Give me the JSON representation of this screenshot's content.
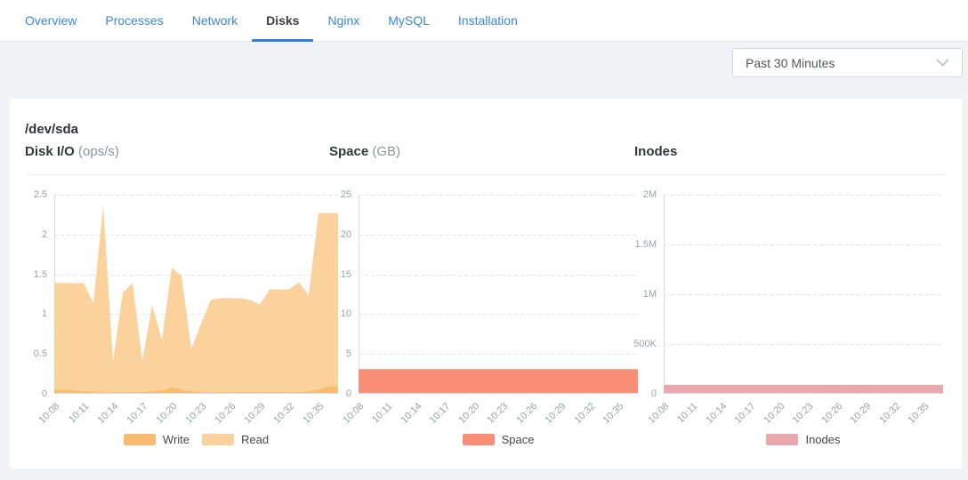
{
  "tabs": {
    "items": [
      {
        "id": "overview",
        "label": "Overview",
        "active": false
      },
      {
        "id": "processes",
        "label": "Processes",
        "active": false
      },
      {
        "id": "network",
        "label": "Network",
        "active": false
      },
      {
        "id": "disks",
        "label": "Disks",
        "active": true
      },
      {
        "id": "nginx",
        "label": "Nginx",
        "active": false
      },
      {
        "id": "mysql",
        "label": "MySQL",
        "active": false
      },
      {
        "id": "installation",
        "label": "Installation",
        "active": false
      }
    ]
  },
  "toolbar": {
    "time_range": "Past 30 Minutes",
    "chevron_icon": "chevron-down"
  },
  "panel": {
    "device": "/dev/sda"
  },
  "colors": {
    "tab_blue": "#3b87d6",
    "active_tab_underline": "#2e7fe1",
    "write_series": "#F9BC6F",
    "read_series": "#FBD29C",
    "space_series": "#FA8E76",
    "inodes_series": "#E8A8AE"
  },
  "chart_data": [
    {
      "id": "disk-io",
      "type": "area",
      "title": "Disk I/O",
      "unit": "(ops/s)",
      "x_tick_labels": [
        "10:08",
        "10:11",
        "10:14",
        "10:17",
        "10:20",
        "10:23",
        "10:26",
        "10:29",
        "10:32",
        "10:35"
      ],
      "points_per_tick": 3,
      "y_ticks": [
        {
          "v": 0,
          "label": "0"
        },
        {
          "v": 0.5,
          "label": "0.5"
        },
        {
          "v": 1,
          "label": "1"
        },
        {
          "v": 1.5,
          "label": "1.5"
        },
        {
          "v": 2,
          "label": "2"
        },
        {
          "v": 2.5,
          "label": "2.5"
        }
      ],
      "y_max": 2.5,
      "grid": "dashed",
      "legend_position": "bottom",
      "series": [
        {
          "name": "Write",
          "color": "#F9BC6F",
          "values": [
            0.05,
            0.05,
            0.04,
            0.03,
            0.03,
            0.02,
            0.02,
            0.02,
            0.02,
            0.02,
            0.03,
            0.04,
            0.08,
            0.05,
            0.03,
            0.02,
            0.02,
            0.02,
            0.02,
            0.02,
            0.02,
            0.02,
            0.02,
            0.02,
            0.02,
            0.02,
            0.03,
            0.05,
            0.09,
            0.09
          ]
        },
        {
          "name": "Read",
          "color": "#FBD29C",
          "values": [
            1.39,
            1.39,
            1.39,
            1.39,
            1.14,
            2.36,
            0.41,
            1.27,
            1.39,
            0.41,
            1.11,
            0.68,
            1.58,
            1.48,
            0.56,
            0.88,
            1.18,
            1.2,
            1.2,
            1.2,
            1.18,
            1.12,
            1.31,
            1.31,
            1.31,
            1.4,
            1.24,
            2.27,
            2.27,
            2.27
          ]
        }
      ]
    },
    {
      "id": "space",
      "type": "area",
      "title": "Space",
      "unit": "(GB)",
      "x_tick_labels": [
        "10:08",
        "10:11",
        "10:14",
        "10:17",
        "10:20",
        "10:23",
        "10:26",
        "10:29",
        "10:32",
        "10:35"
      ],
      "points_per_tick": 3,
      "y_ticks": [
        {
          "v": 0,
          "label": "0"
        },
        {
          "v": 5,
          "label": "5"
        },
        {
          "v": 10,
          "label": "10"
        },
        {
          "v": 15,
          "label": "15"
        },
        {
          "v": 20,
          "label": "20"
        },
        {
          "v": 25,
          "label": "25"
        }
      ],
      "y_max": 25,
      "grid": "dashed",
      "legend_position": "bottom",
      "series": [
        {
          "name": "Space",
          "color": "#FA8E76",
          "values": [
            3.1,
            3.1,
            3.1,
            3.1,
            3.1,
            3.1,
            3.1,
            3.1,
            3.1,
            3.1,
            3.1,
            3.1,
            3.1,
            3.1,
            3.1,
            3.1,
            3.1,
            3.1,
            3.1,
            3.1,
            3.1,
            3.1,
            3.1,
            3.1,
            3.1,
            3.1,
            3.1,
            3.1,
            3.1,
            3.1
          ]
        }
      ]
    },
    {
      "id": "inodes",
      "type": "area",
      "title": "Inodes",
      "unit": "",
      "x_tick_labels": [
        "10:08",
        "10:11",
        "10:14",
        "10:17",
        "10:20",
        "10:23",
        "10:26",
        "10:29",
        "10:32",
        "10:35"
      ],
      "points_per_tick": 3,
      "y_ticks": [
        {
          "v": 0,
          "label": "0"
        },
        {
          "v": 500000,
          "label": "500K"
        },
        {
          "v": 1000000,
          "label": "1M"
        },
        {
          "v": 1500000,
          "label": "1.5M"
        },
        {
          "v": 2000000,
          "label": "2M"
        }
      ],
      "y_max": 2000000,
      "grid": "dashed",
      "legend_position": "bottom",
      "series": [
        {
          "name": "Inodes",
          "color": "#E8A8AE",
          "values": [
            90000,
            90000,
            90000,
            90000,
            90000,
            90000,
            90000,
            90000,
            90000,
            90000,
            90000,
            90000,
            90000,
            90000,
            90000,
            90000,
            90000,
            90000,
            90000,
            90000,
            90000,
            90000,
            90000,
            90000,
            90000,
            90000,
            90000,
            90000,
            90000,
            90000
          ]
        }
      ]
    }
  ]
}
